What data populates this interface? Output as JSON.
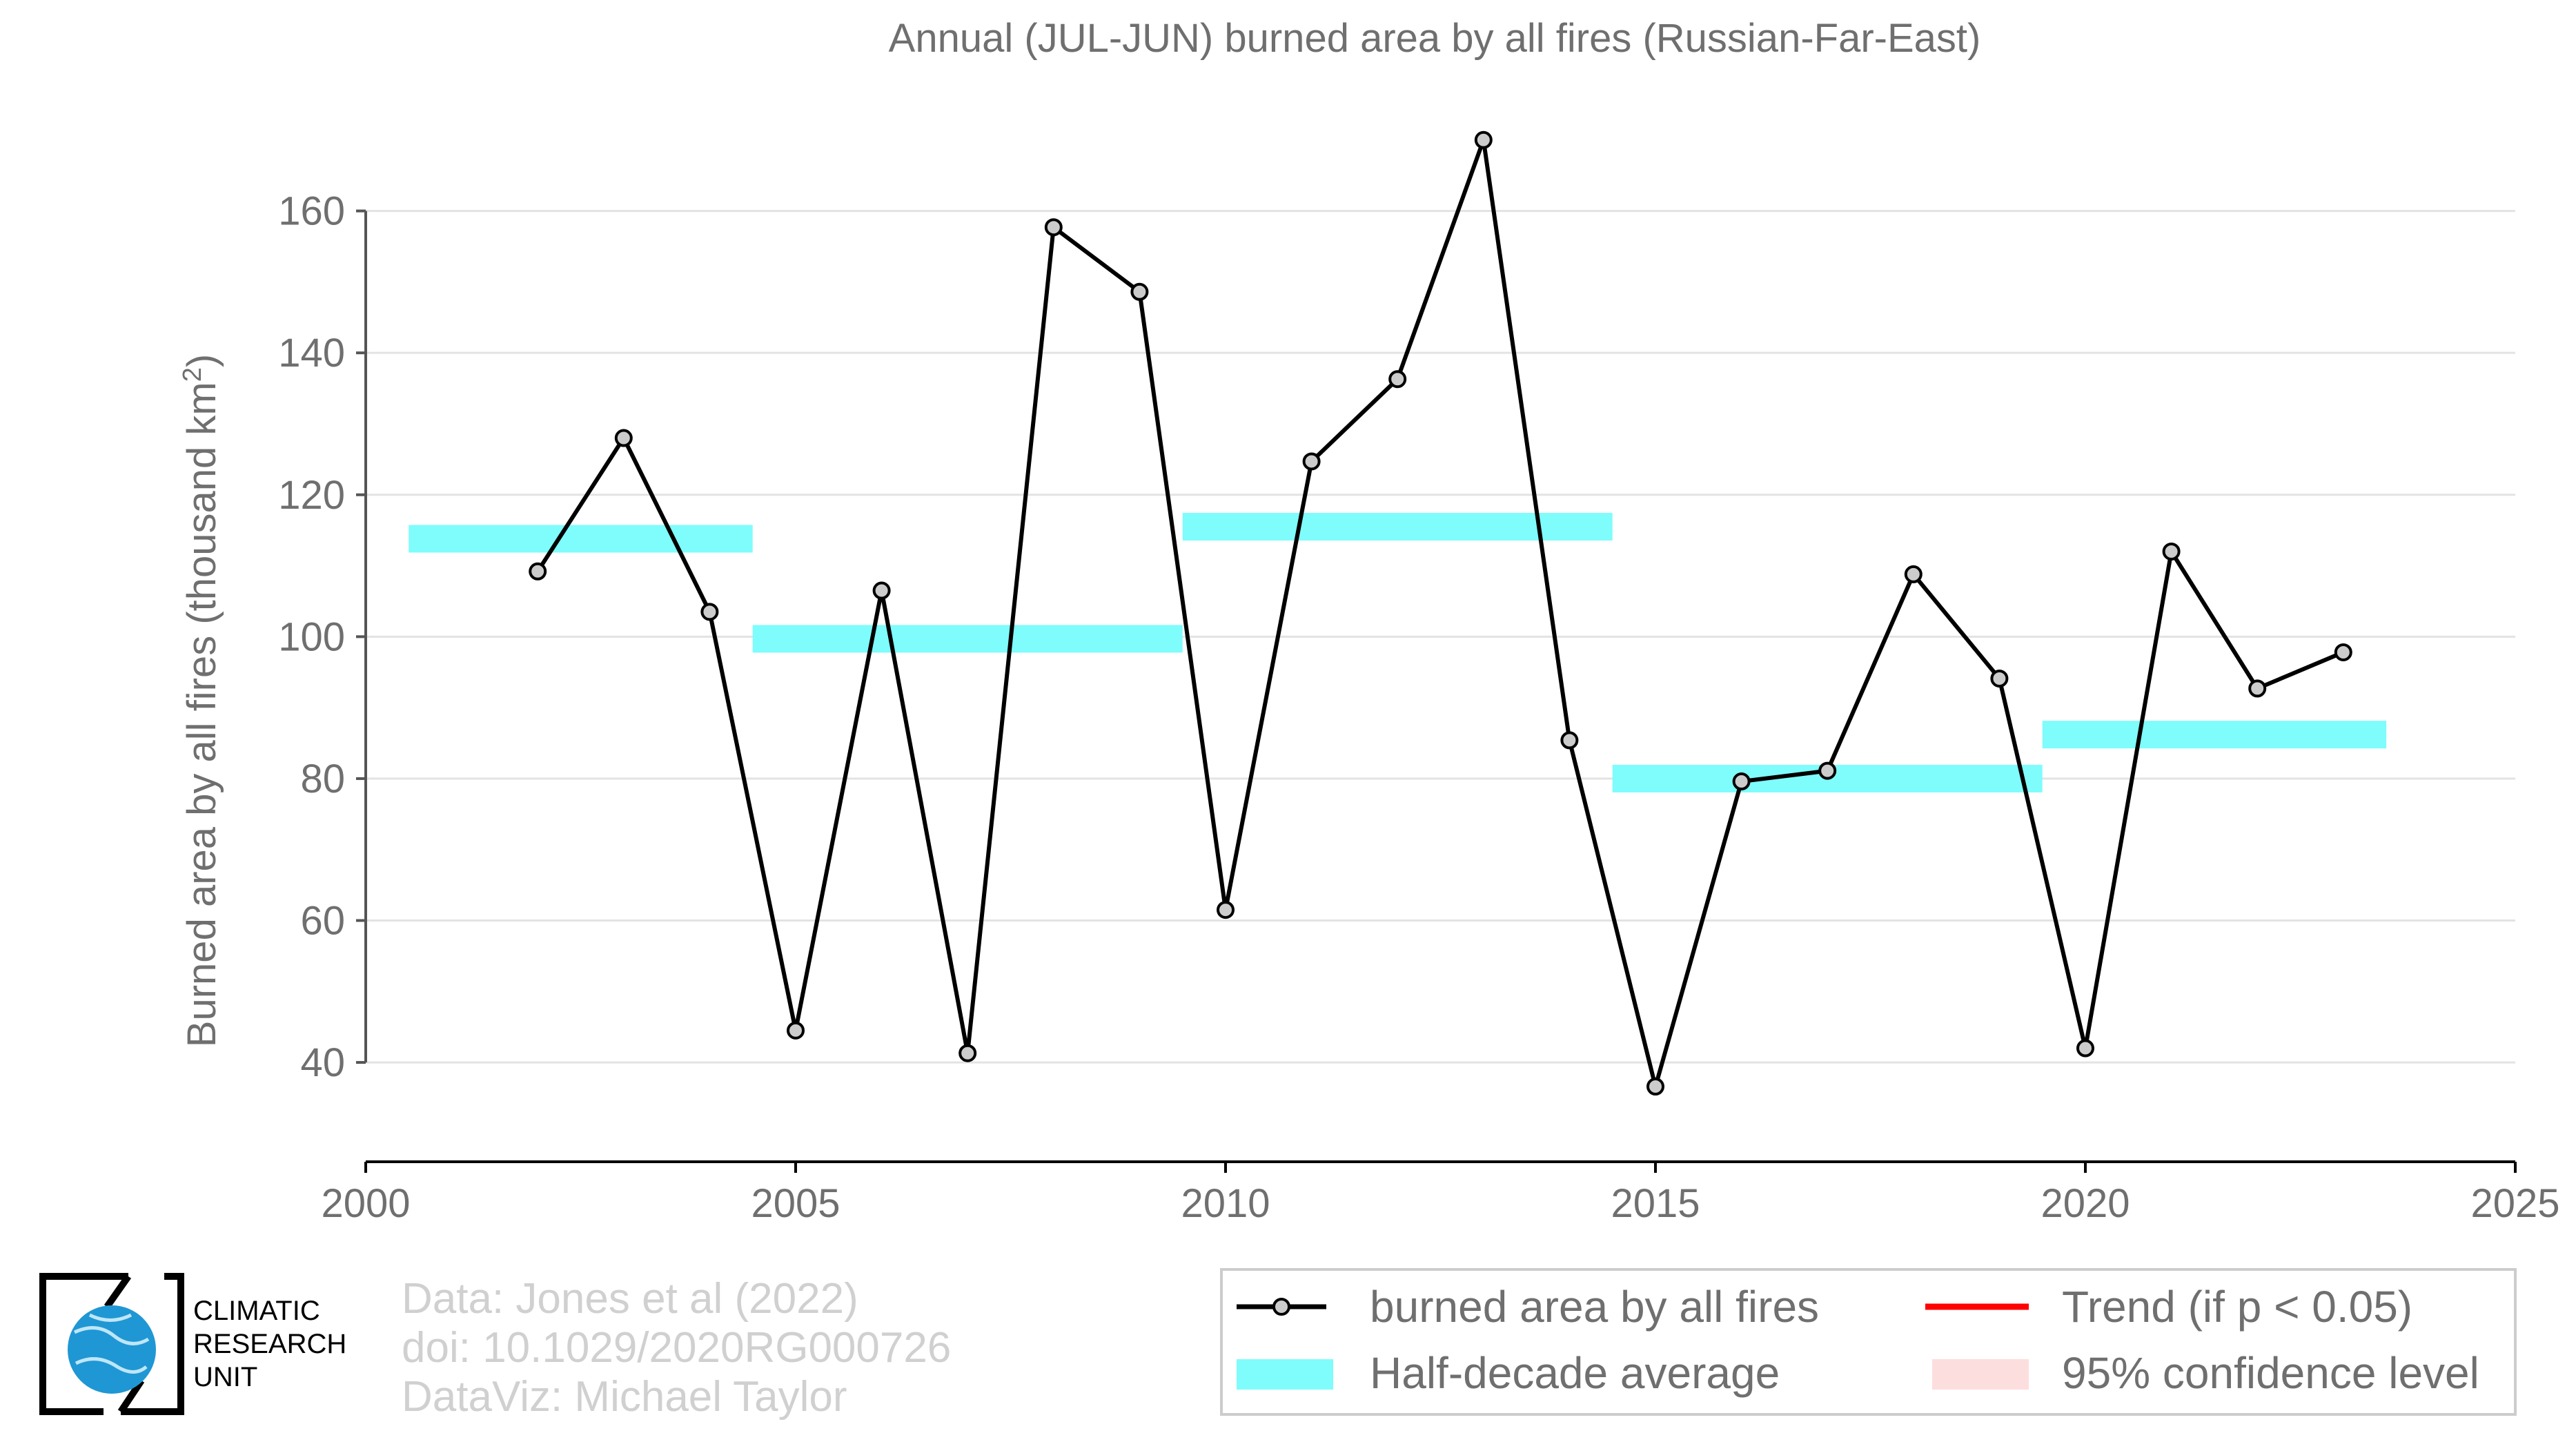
{
  "chart_data": {
    "type": "line",
    "title": "Annual (JUL-JUN) burned area by all fires (Russian-Far-East)",
    "ylabel": "Burned area by all fires (thousand km",
    "ylabel_sup": "2",
    "ylabel_end": ")",
    "xlabel": "",
    "xlim": [
      2000,
      2025
    ],
    "ylim": [
      26,
      180
    ],
    "x_ticks": [
      2000,
      2005,
      2010,
      2015,
      2020,
      2025
    ],
    "y_ticks": [
      40,
      60,
      80,
      100,
      120,
      140,
      160
    ],
    "grid": "horizontal",
    "series": [
      {
        "name": "burned area by all fires",
        "color": "#000000",
        "marker_fill": "#cccccc",
        "x": [
          2002,
          2003,
          2004,
          2005,
          2006,
          2007,
          2008,
          2009,
          2010,
          2011,
          2012,
          2013,
          2014,
          2015,
          2016,
          2017,
          2018,
          2019,
          2020,
          2021,
          2022,
          2023
        ],
        "y": [
          109.2,
          128.0,
          103.5,
          44.5,
          106.5,
          41.3,
          157.7,
          148.6,
          61.5,
          124.7,
          136.3,
          170.0,
          85.4,
          36.6,
          79.6,
          81.1,
          108.8,
          94.1,
          42.0,
          112.0,
          92.7,
          97.8
        ]
      }
    ],
    "half_decade_averages": {
      "name": "Half-decade average",
      "color": "#7ffcfc",
      "segments": [
        {
          "x0": 2000.5,
          "x1": 2004.5,
          "y": 113.8
        },
        {
          "x0": 2004.5,
          "x1": 2009.5,
          "y": 99.7
        },
        {
          "x0": 2009.5,
          "x1": 2014.5,
          "y": 115.5
        },
        {
          "x0": 2014.5,
          "x1": 2019.5,
          "y": 80.0
        },
        {
          "x0": 2019.5,
          "x1": 2023.5,
          "y": 86.2
        }
      ]
    },
    "legend": {
      "placement": "bottom-right",
      "entries": [
        {
          "label": "burned area by all fires",
          "kind": "line-marker",
          "color": "#000000"
        },
        {
          "label": "Trend (if p < 0.05)",
          "kind": "line",
          "color": "#ff0000"
        },
        {
          "label": "Half-decade average",
          "kind": "band",
          "color": "#7ffcfc"
        },
        {
          "label": "95% confidence level",
          "kind": "band",
          "color": "#fddede"
        }
      ]
    }
  },
  "credits": {
    "line1": "Data: Jones et al (2022)",
    "line2": "doi: 10.1029/2020RG000726",
    "line3": "DataViz: Michael Taylor"
  },
  "logo": {
    "line1": "CLIMATIC",
    "line2": "RESEARCH",
    "line3": "UNIT",
    "globe_color": "#1f97d4"
  }
}
